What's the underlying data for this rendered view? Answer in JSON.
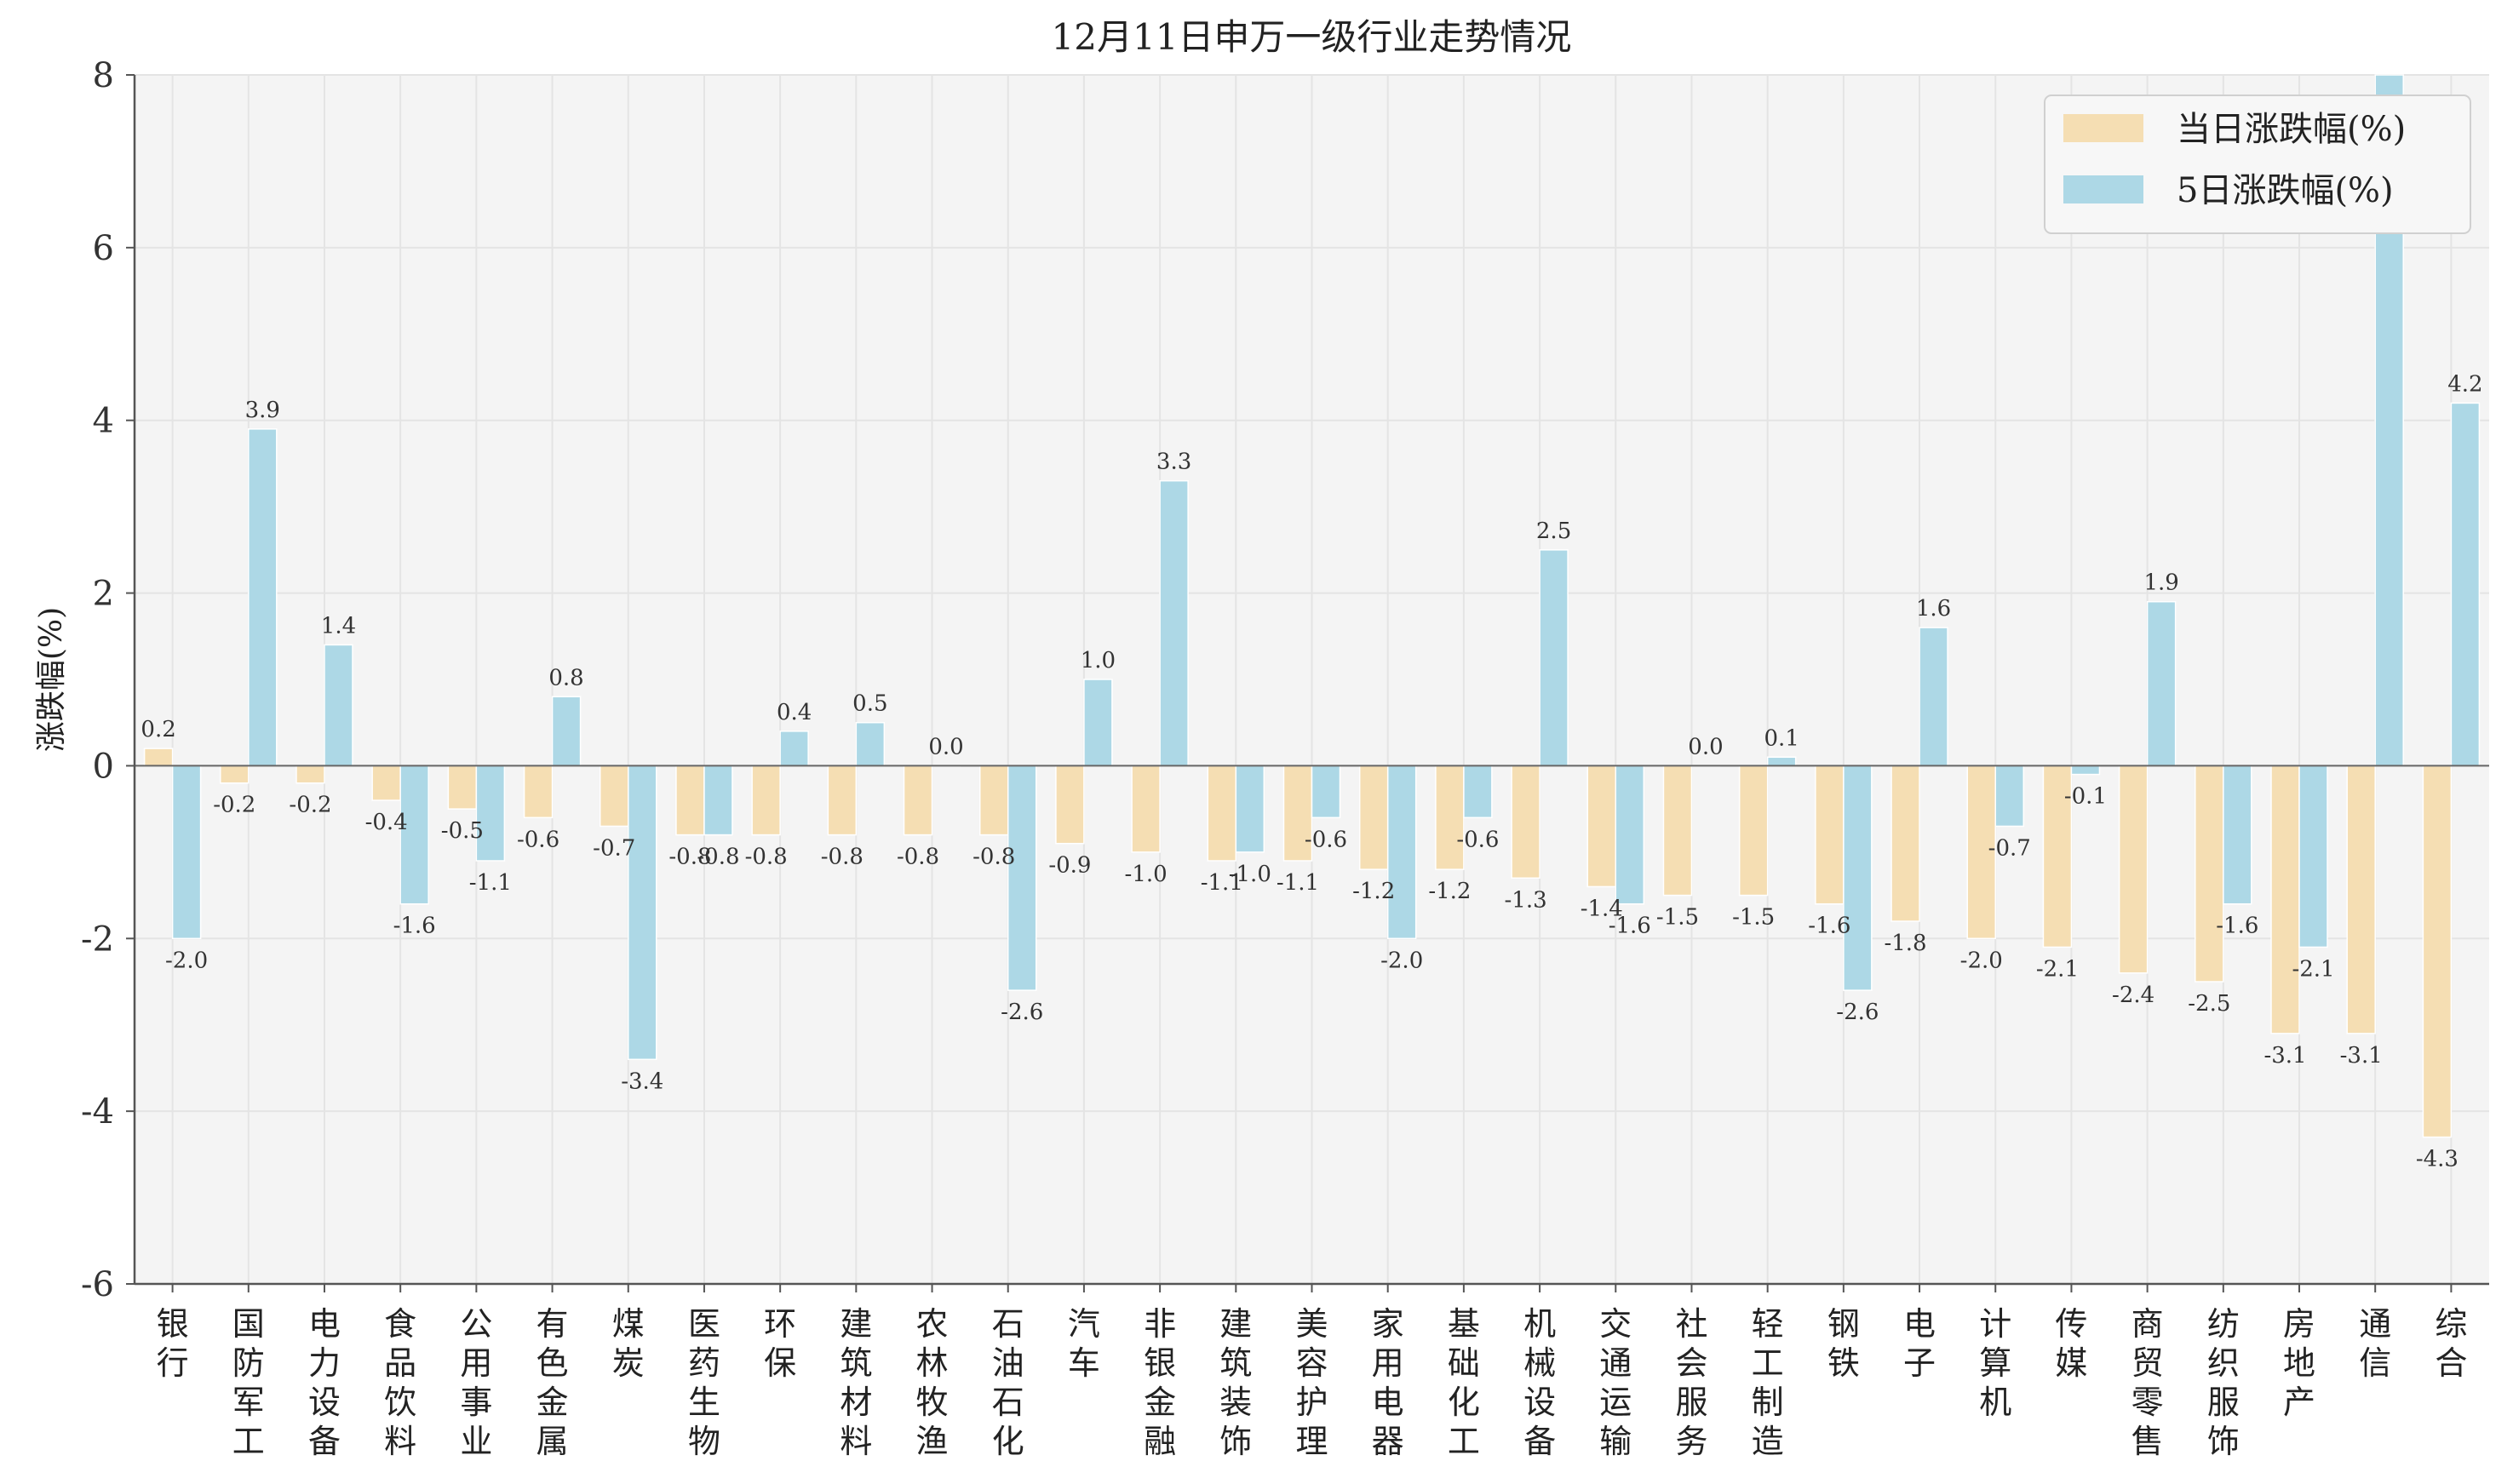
{
  "chart_data": {
    "type": "bar",
    "title": "12月11日申万一级行业走势情况",
    "ylabel": "涨跌幅(%)",
    "ylim": [
      -6,
      8
    ],
    "yticks": [
      -6,
      -4,
      -2,
      0,
      2,
      4,
      6,
      8
    ],
    "grid": true,
    "legend_position": "top-right",
    "categories": [
      "银行",
      "国防军工",
      "电力设备",
      "食品饮料",
      "公用事业",
      "有色金属",
      "煤炭",
      "医药生物",
      "环保",
      "建筑材料",
      "农林牧渔",
      "石油石化",
      "汽车",
      "非银金融",
      "建筑装饰",
      "美容护理",
      "家用电器",
      "基础化工",
      "机械设备",
      "交通运输",
      "社会服务",
      "轻工制造",
      "钢铁",
      "电子",
      "计算机",
      "传媒",
      "商贸零售",
      "纺织服饰",
      "房地产",
      "通信",
      "综合"
    ],
    "series": [
      {
        "name": "当日涨跌幅(%)",
        "color": "#f5deb3",
        "values": [
          0.2,
          -0.2,
          -0.2,
          -0.4,
          -0.5,
          -0.6,
          -0.7,
          -0.8,
          -0.8,
          -0.8,
          -0.8,
          -0.8,
          -0.9,
          -1.0,
          -1.1,
          -1.1,
          -1.2,
          -1.2,
          -1.3,
          -1.4,
          -1.5,
          -1.5,
          -1.6,
          -1.8,
          -2.0,
          -2.1,
          -2.4,
          -2.5,
          -3.1,
          -3.1,
          -4.3
        ],
        "labels": [
          "0.2",
          "-0.2",
          "-0.2",
          "-0.4",
          "-0.5",
          "-0.6",
          "-0.7",
          "-0.8",
          "-0.8",
          "-0.8",
          "-0.8",
          "-0.8",
          "-0.9",
          "-1.0",
          "-1.1",
          "-1.1",
          "-1.2",
          "-1.2",
          "-1.3",
          "-1.4",
          "-1.5",
          "-1.5",
          "-1.6",
          "-1.8",
          "-2.0",
          "-2.1",
          "-2.4",
          "-2.5",
          "-3.1",
          "-3.1",
          "-4.3"
        ]
      },
      {
        "name": "5日涨跌幅(%)",
        "color": "#add8e6",
        "values": [
          -2.0,
          3.9,
          1.4,
          -1.6,
          -1.1,
          0.8,
          -3.4,
          -0.8,
          0.4,
          0.5,
          0.0,
          -2.6,
          1.0,
          3.3,
          -1.0,
          -0.6,
          -2.0,
          -0.6,
          2.5,
          -1.6,
          0.0,
          0.1,
          -2.6,
          1.6,
          -0.7,
          -0.1,
          1.9,
          -1.6,
          -2.1,
          8.5,
          4.2
        ],
        "labels": [
          "-2.0",
          "3.9",
          "1.4",
          "-1.6",
          "-1.1",
          "0.8",
          "-3.4",
          "-0.8",
          "0.4",
          "0.5",
          "0.0",
          "-2.6",
          "1.0",
          "3.3",
          "-1.0",
          "-0.6",
          "-2.0",
          "-0.6",
          "2.5",
          "-1.6",
          "0.0",
          "0.1",
          "-2.6",
          "1.6",
          "-0.7",
          "-0.1",
          "1.9",
          "-1.6",
          "-2.1",
          "",
          "4.2"
        ]
      }
    ]
  }
}
